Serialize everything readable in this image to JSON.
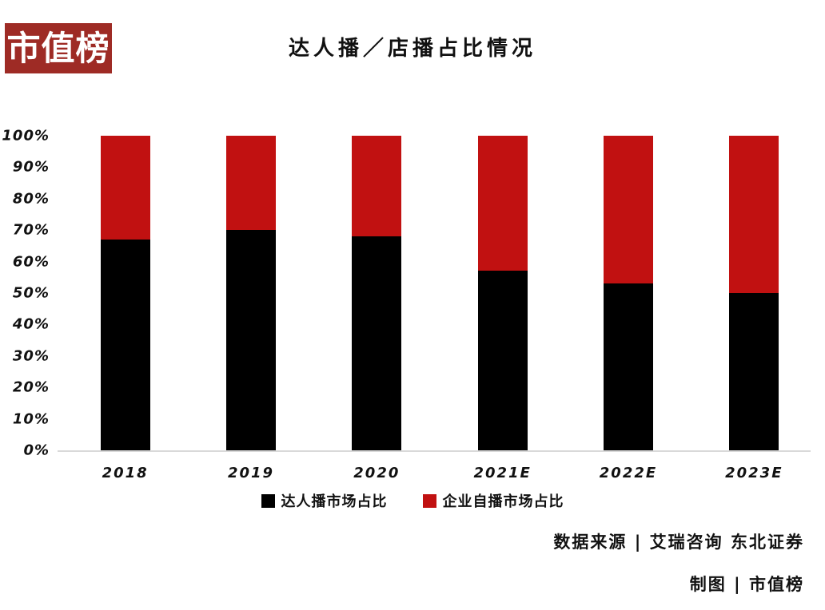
{
  "logo": {
    "text": "市值榜",
    "bg_color": "#9e2b25",
    "text_color": "#ffffff"
  },
  "title": "达人播／店播占比情况",
  "chart_data": {
    "type": "bar",
    "stacked": true,
    "categories": [
      "2018",
      "2019",
      "2020",
      "2021E",
      "2022E",
      "2023E"
    ],
    "series": [
      {
        "name": "达人播市场占比",
        "color": "#000000",
        "values": [
          67,
          70,
          68,
          57,
          53,
          50
        ]
      },
      {
        "name": "企业自播市场占比",
        "color": "#c11111",
        "values": [
          33,
          30,
          32,
          43,
          47,
          50
        ]
      }
    ],
    "y_ticks": [
      "0%",
      "10%",
      "20%",
      "30%",
      "40%",
      "50%",
      "60%",
      "70%",
      "80%",
      "90%",
      "100%"
    ],
    "ylim": [
      0,
      100
    ],
    "grid": false,
    "legend_position": "bottom",
    "axis_line_color": "#d9d9d9"
  },
  "footer": {
    "source": "数据来源 | 艾瑞咨询 东北证券",
    "credit": "制图 | 市值榜"
  }
}
